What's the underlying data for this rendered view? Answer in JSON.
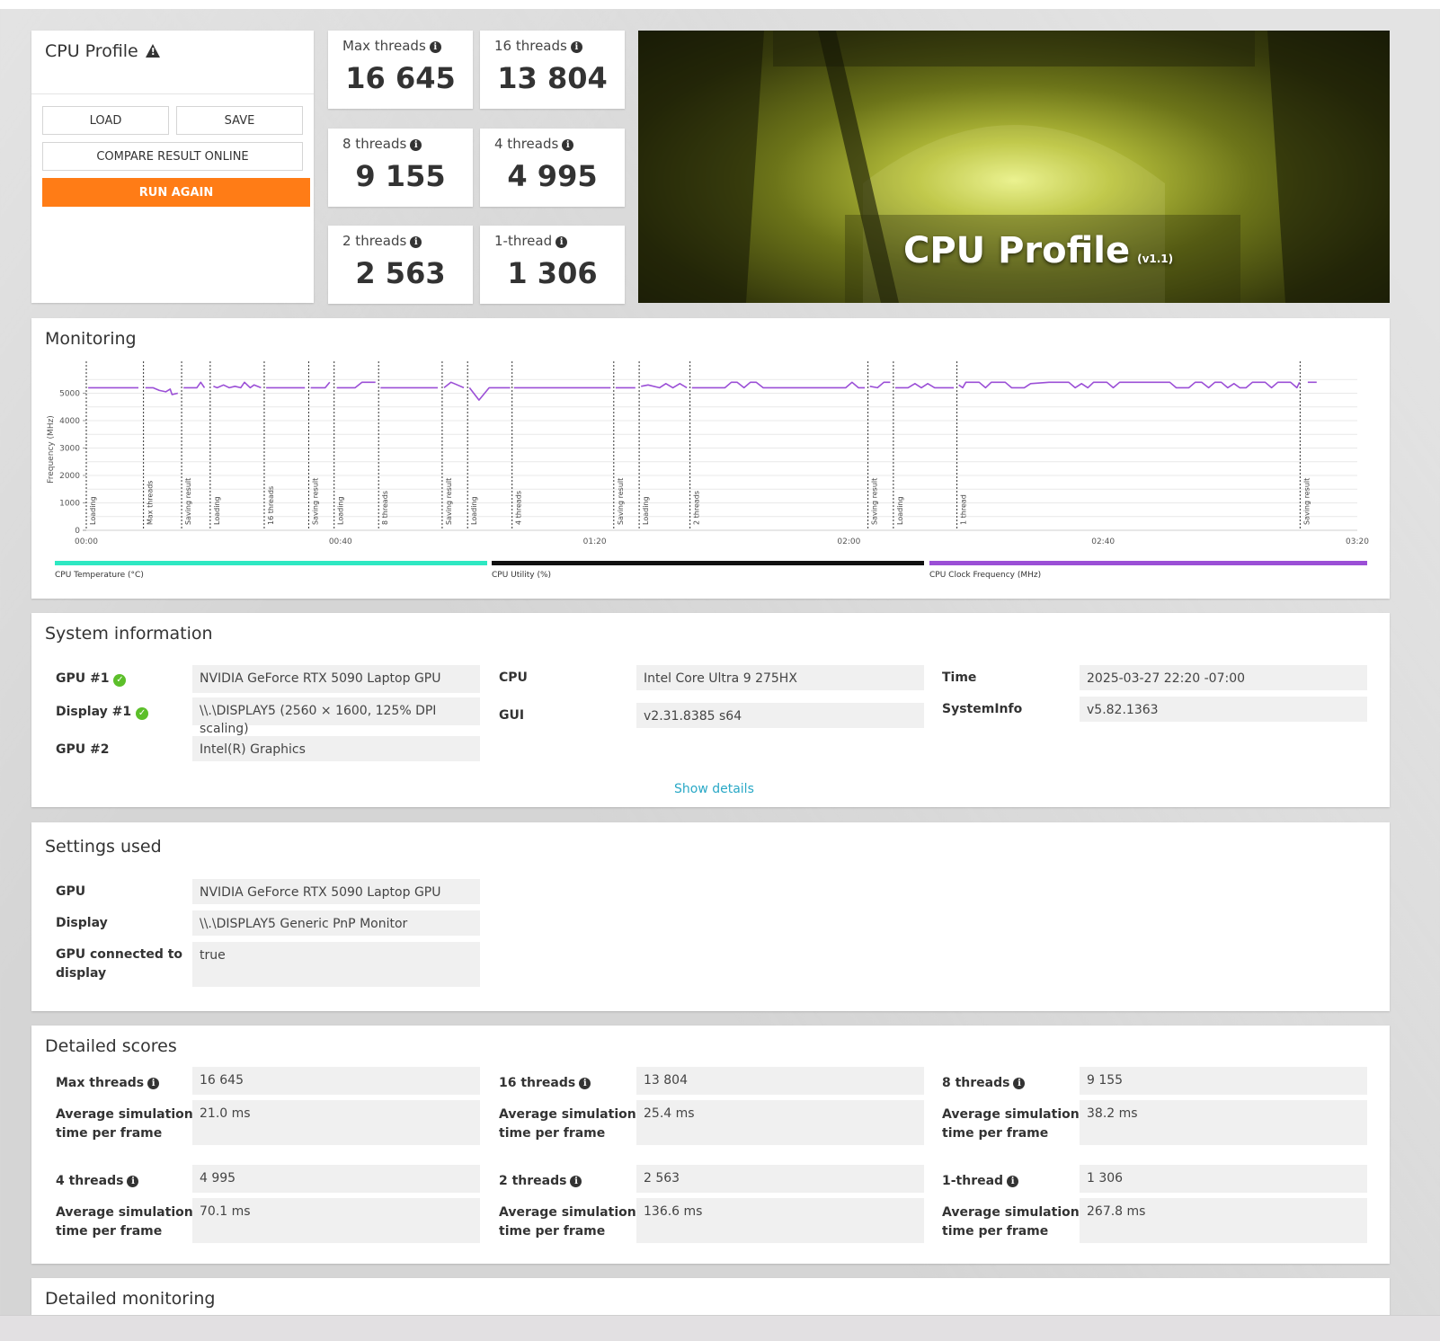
{
  "profile": {
    "title": "CPU Profile",
    "load_label": "LOAD",
    "save_label": "SAVE",
    "compare_label": "COMPARE RESULT ONLINE",
    "run_again_label": "RUN AGAIN",
    "accent_color": "#ff7c16"
  },
  "scores": [
    {
      "label": "Max threads",
      "value": "16 645"
    },
    {
      "label": "16 threads",
      "value": "13 804"
    },
    {
      "label": "8 threads",
      "value": "9 155"
    },
    {
      "label": "4 threads",
      "value": "4 995"
    },
    {
      "label": "2 threads",
      "value": "2 563"
    },
    {
      "label": "1-thread",
      "value": "1 306"
    }
  ],
  "banner": {
    "title": "CPU Profile",
    "version": "(v1.1)"
  },
  "monitoring": {
    "title": "Monitoring",
    "legend": [
      {
        "label": "CPU Temperature (°C)",
        "color": "#2ee8c2"
      },
      {
        "label": "CPU Utility (%)",
        "color": "#111111"
      },
      {
        "label": "CPU Clock Frequency (MHz)",
        "color": "#9b4fd6"
      }
    ]
  },
  "chart_data": {
    "type": "line",
    "ylabel": "Frequency (MHz)",
    "xlabel": "",
    "ylim": [
      0,
      5900
    ],
    "xlim": [
      0,
      200
    ],
    "yticks": [
      0,
      1000,
      2000,
      3000,
      4000,
      5000
    ],
    "xticks": [
      {
        "t": 0,
        "label": "00:00"
      },
      {
        "t": 40,
        "label": "00:40"
      },
      {
        "t": 80,
        "label": "01:20"
      },
      {
        "t": 120,
        "label": "02:00"
      },
      {
        "t": 160,
        "label": "02:40"
      },
      {
        "t": 200,
        "label": "03:20"
      }
    ],
    "grid": true,
    "markers": [
      {
        "t": 0,
        "label": "Loading"
      },
      {
        "t": 9,
        "label": "Max threads"
      },
      {
        "t": 15,
        "label": "Saving result"
      },
      {
        "t": 19.5,
        "label": "Loading"
      },
      {
        "t": 28,
        "label": "16 threads"
      },
      {
        "t": 35,
        "label": "Saving result"
      },
      {
        "t": 39,
        "label": "Loading"
      },
      {
        "t": 46,
        "label": "8 threads"
      },
      {
        "t": 56,
        "label": "Saving result"
      },
      {
        "t": 60,
        "label": "Loading"
      },
      {
        "t": 67,
        "label": "4 threads"
      },
      {
        "t": 83,
        "label": "Saving result"
      },
      {
        "t": 87,
        "label": "Loading"
      },
      {
        "t": 95,
        "label": "2 threads"
      },
      {
        "t": 123,
        "label": "Saving result"
      },
      {
        "t": 127,
        "label": "Loading"
      },
      {
        "t": 137,
        "label": "1 thread"
      },
      {
        "t": 191,
        "label": "Saving result"
      }
    ],
    "series": [
      {
        "name": "CPU Clock Frequency (MHz)",
        "color": "#9b4fd6",
        "segments": [
          [
            [
              0.3,
              5200
            ],
            [
              8.2,
              5200
            ]
          ],
          [
            [
              9.3,
              5200
            ],
            [
              10.5,
              5200
            ],
            [
              11.5,
              5100
            ],
            [
              12.5,
              5050
            ],
            [
              13.2,
              5150
            ],
            [
              13.5,
              4950
            ],
            [
              14.4,
              5000
            ]
          ],
          [
            [
              15.3,
              5200
            ],
            [
              17.4,
              5200
            ],
            [
              18,
              5400
            ],
            [
              18.6,
              5200
            ]
          ],
          [
            [
              20,
              5250
            ],
            [
              20.6,
              5200
            ],
            [
              21.6,
              5300
            ],
            [
              22.5,
              5200
            ],
            [
              23.4,
              5250
            ],
            [
              24.3,
              5200
            ],
            [
              24.9,
              5400
            ],
            [
              25.8,
              5200
            ],
            [
              26.4,
              5300
            ],
            [
              27.5,
              5200
            ]
          ],
          [
            [
              28.3,
              5200
            ],
            [
              34.4,
              5200
            ]
          ],
          [
            [
              35.3,
              5200
            ],
            [
              37.6,
              5200
            ],
            [
              38.3,
              5400
            ]
          ],
          [
            [
              39.4,
              5200
            ],
            [
              42.3,
              5200
            ],
            [
              43.4,
              5400
            ],
            [
              45.5,
              5400
            ]
          ],
          [
            [
              46.3,
              5200
            ],
            [
              55.3,
              5200
            ]
          ],
          [
            [
              56.3,
              5200
            ],
            [
              57.4,
              5400
            ],
            [
              58.4,
              5300
            ],
            [
              59.4,
              5200
            ]
          ],
          [
            [
              60.3,
              5200
            ],
            [
              61.8,
              4750
            ],
            [
              63.4,
              5200
            ],
            [
              66.7,
              5200
            ]
          ],
          [
            [
              67.3,
              5200
            ],
            [
              82.5,
              5200
            ]
          ],
          [
            [
              83.3,
              5200
            ],
            [
              86.4,
              5200
            ]
          ],
          [
            [
              87.3,
              5250
            ],
            [
              88.4,
              5300
            ],
            [
              90.2,
              5200
            ],
            [
              91.2,
              5350
            ],
            [
              92.3,
              5200
            ],
            [
              93.4,
              5350
            ],
            [
              94.5,
              5200
            ]
          ],
          [
            [
              95.3,
              5200
            ],
            [
              100.5,
              5200
            ],
            [
              101.5,
              5400
            ],
            [
              102.4,
              5400
            ],
            [
              103.5,
              5200
            ],
            [
              104.5,
              5400
            ],
            [
              105.4,
              5400
            ],
            [
              106.5,
              5200
            ],
            [
              119.5,
              5200
            ],
            [
              120.5,
              5400
            ],
            [
              121.5,
              5200
            ],
            [
              122.5,
              5200
            ]
          ],
          [
            [
              123.3,
              5250
            ],
            [
              124.5,
              5200
            ],
            [
              125.5,
              5400
            ],
            [
              126.5,
              5400
            ]
          ],
          [
            [
              127.3,
              5200
            ],
            [
              129.3,
              5200
            ],
            [
              130.4,
              5350
            ],
            [
              131.4,
              5200
            ],
            [
              132.4,
              5350
            ],
            [
              133.5,
              5200
            ],
            [
              136.5,
              5200
            ]
          ],
          [
            [
              137.3,
              5300
            ],
            [
              137.9,
              5200
            ],
            [
              138.4,
              5400
            ],
            [
              140.5,
              5400
            ],
            [
              141.5,
              5200
            ],
            [
              142.4,
              5400
            ],
            [
              144.6,
              5400
            ],
            [
              145.6,
              5200
            ],
            [
              147.6,
              5200
            ],
            [
              148.6,
              5350
            ],
            [
              151.5,
              5400
            ],
            [
              154.6,
              5400
            ],
            [
              155.6,
              5200
            ],
            [
              156.6,
              5350
            ],
            [
              157.6,
              5200
            ],
            [
              158.5,
              5400
            ],
            [
              160.6,
              5400
            ],
            [
              161.6,
              5200
            ],
            [
              162.6,
              5400
            ],
            [
              170.5,
              5400
            ],
            [
              171.5,
              5200
            ],
            [
              173.5,
              5200
            ],
            [
              174.5,
              5400
            ],
            [
              175.5,
              5400
            ],
            [
              176.6,
              5200
            ],
            [
              177.6,
              5400
            ],
            [
              178.6,
              5400
            ],
            [
              179.6,
              5200
            ],
            [
              180.6,
              5350
            ],
            [
              181.5,
              5200
            ],
            [
              182.5,
              5200
            ],
            [
              183.5,
              5400
            ],
            [
              185.5,
              5400
            ],
            [
              186.5,
              5200
            ],
            [
              187.5,
              5400
            ],
            [
              189.5,
              5400
            ],
            [
              190.5,
              5200
            ],
            [
              190.9,
              5400
            ]
          ],
          [
            [
              192.2,
              5400
            ],
            [
              193.6,
              5400
            ]
          ]
        ]
      }
    ]
  },
  "system_info": {
    "title": "System information",
    "rows": [
      {
        "label": "GPU #1",
        "value": "NVIDIA GeForce RTX 5090 Laptop GPU",
        "check": true
      },
      {
        "label": "Display #1",
        "value": "\\\\.\\DISPLAY5 (2560 × 1600, 125% DPI scaling)",
        "check": true
      },
      {
        "label": "GPU #2",
        "value": "Intel(R) Graphics"
      },
      {
        "label": "CPU",
        "value": "Intel Core Ultra 9 275HX"
      },
      {
        "label": "GUI",
        "value": "v2.31.8385 s64"
      },
      {
        "label": "Time",
        "value": "2025-03-27 22:20 -07:00"
      },
      {
        "label": "SystemInfo",
        "value": "v5.82.1363"
      }
    ],
    "show_details_label": "Show details"
  },
  "settings": {
    "title": "Settings used",
    "rows": [
      {
        "label": "GPU",
        "value": "NVIDIA GeForce RTX 5090 Laptop GPU"
      },
      {
        "label": "Display",
        "value": "\\\\.\\DISPLAY5 Generic PnP Monitor"
      },
      {
        "label_line1": "GPU connected to",
        "label_line2": "display",
        "value": "true"
      }
    ]
  },
  "detailed_scores": {
    "title": "Detailed scores",
    "sub_label_line1": "Average simulation",
    "sub_label_line2": "time per frame",
    "items": [
      {
        "label": "Max threads",
        "score": "16 645",
        "avg": "21.0 ms"
      },
      {
        "label": "16 threads",
        "score": "13 804",
        "avg": "25.4 ms"
      },
      {
        "label": "8 threads",
        "score": "9 155",
        "avg": "38.2 ms"
      },
      {
        "label": "4 threads",
        "score": "4 995",
        "avg": "70.1 ms"
      },
      {
        "label": "2 threads",
        "score": "2 563",
        "avg": "136.6 ms"
      },
      {
        "label": "1-thread",
        "score": "1 306",
        "avg": "267.8 ms"
      }
    ]
  },
  "detailed_monitoring": {
    "title": "Detailed monitoring"
  }
}
